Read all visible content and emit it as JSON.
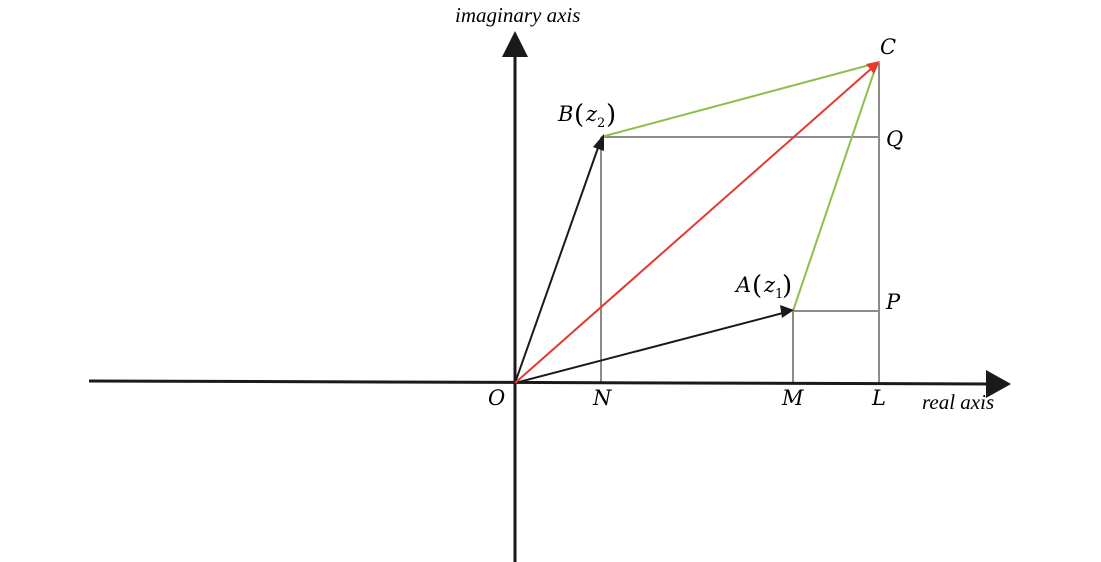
{
  "axes": {
    "x_title": "real axis",
    "y_title": "imaginary axis"
  },
  "points": {
    "O": "O",
    "N": "N",
    "M": "M",
    "L": "L",
    "P": "P",
    "Q": "Q",
    "C": "C"
  },
  "A_label": {
    "letter": "A",
    "open": "(",
    "var": "z",
    "sub": "1",
    "close": ")"
  },
  "B_label": {
    "letter": "B",
    "open": "(",
    "var": "z",
    "sub": "2",
    "close": ")"
  },
  "colors": {
    "axis": "#1a1a1a",
    "vector": "#1a1a1a",
    "sum_vector": "#e23a2c",
    "parallelogram": "#8cc04a",
    "guide": "#8c8c8c"
  }
}
